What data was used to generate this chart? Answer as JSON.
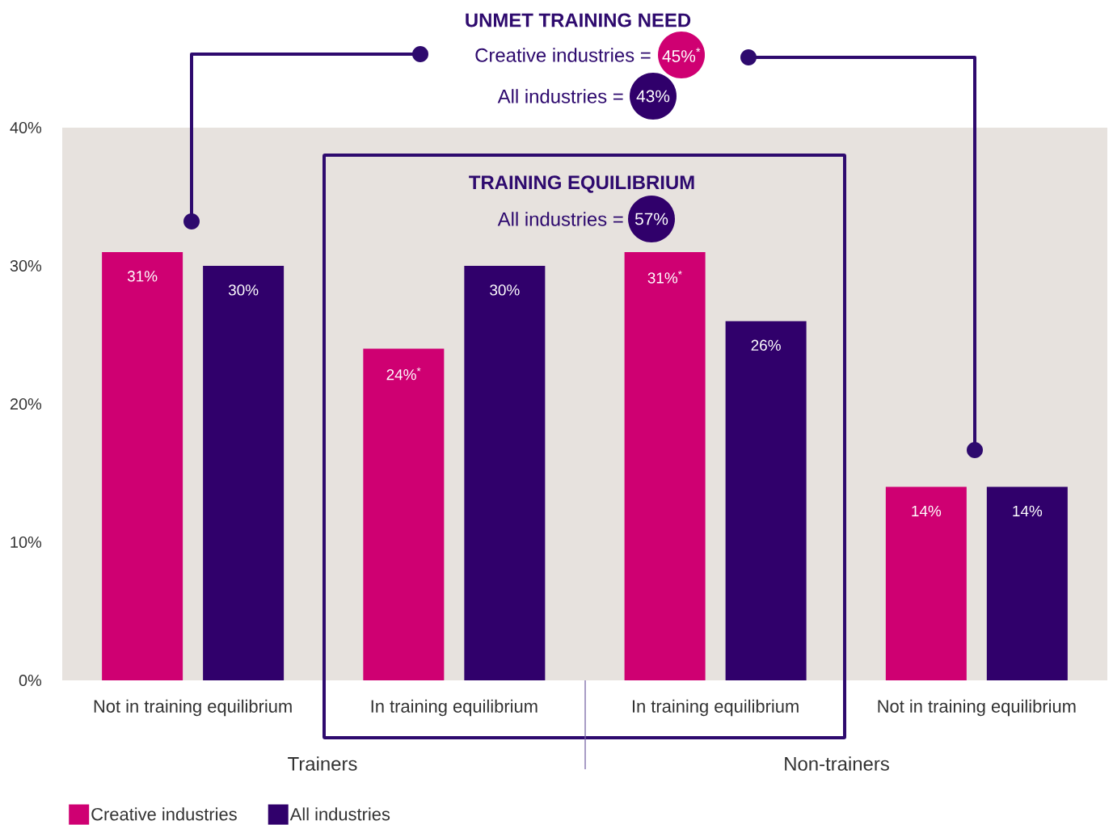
{
  "chart_data": {
    "type": "bar",
    "categories": [
      "Not in training equilibrium",
      "In training equilibrium",
      "In training equilibrium",
      "Not in training equilibrium"
    ],
    "series": [
      {
        "name": "Creative industries",
        "color": "#cf0072",
        "values": [
          31,
          24,
          31,
          14
        ],
        "value_labels": [
          "31%",
          "24%$^{*}$",
          "31%$^{*}$",
          "14%"
        ]
      },
      {
        "name": "All industries",
        "color": "#30006b",
        "values": [
          30,
          30,
          26,
          14
        ],
        "value_labels": [
          "30%",
          "30%",
          "26%",
          "14%"
        ]
      }
    ],
    "ylim": [
      0,
      40
    ],
    "yticks": [
      {
        "value": 0,
        "label": "0%"
      },
      {
        "value": 10,
        "label": "10%"
      },
      {
        "value": 20,
        "label": "20%"
      },
      {
        "value": 30,
        "label": "30%"
      },
      {
        "value": 40,
        "label": "40%"
      }
    ],
    "legend": "bottom left",
    "annotations": [
      "UNMET TRAINING NEED",
      "Creative industries =",
      "45%$^{*}$",
      "All industries =",
      "43%",
      "TRAINING EQUILIBRIUM",
      "All industries =",
      "57%",
      "Trainers",
      "Non-trainers"
    ]
  }
}
